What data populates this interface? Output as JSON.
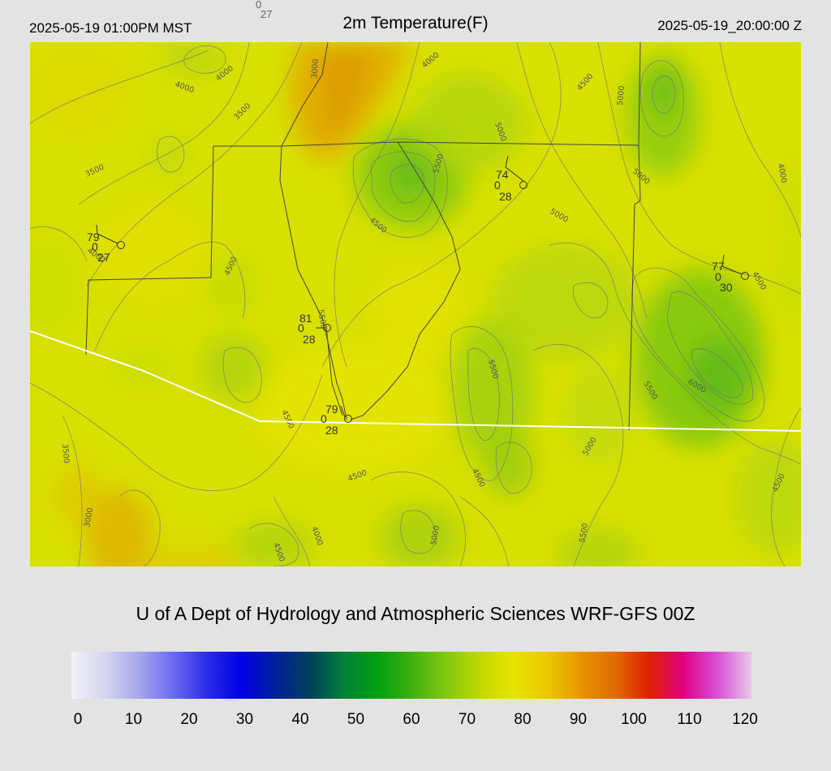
{
  "header": {
    "local_time": "2025-05-19 01:00PM MST",
    "title": "2m Temperature(F)",
    "utc_time": "2025-05-19_20:00:00 Z",
    "top_station": {
      "a": "0",
      "b": "27"
    }
  },
  "credit": "U of A Dept of Hydrology and Atmospheric Sciences WRF-GFS 00Z",
  "colorbar": {
    "ticks": [
      "0",
      "10",
      "20",
      "30",
      "40",
      "50",
      "60",
      "70",
      "80",
      "90",
      "100",
      "110",
      "120"
    ],
    "stops": [
      "#f2f2f8",
      "#d4d4f0",
      "#a6a6ec",
      "#6a6af2",
      "#2b2be8",
      "#0000e6",
      "#00209a",
      "#00405a",
      "#00803a",
      "#00a010",
      "#40b010",
      "#80c810",
      "#c0d800",
      "#e6e400",
      "#ecc800",
      "#e89400",
      "#e06a00",
      "#e02000",
      "#e00080",
      "#d850d8",
      "#e8c8e8"
    ]
  },
  "colors": {
    "background": "#e3e3e3",
    "map_base": "#d8e000",
    "boundary": "#ffffff"
  },
  "contour_labels": [
    "4000",
    "4000",
    "3000",
    "3500",
    "4000",
    "4500",
    "5000",
    "3500",
    "5500",
    "5000",
    "5000",
    "4000",
    "4500",
    "4500",
    "5000",
    "4000",
    "5500",
    "4500",
    "5500",
    "6000",
    "5500",
    "3500",
    "5000",
    "3000",
    "4500",
    "4500",
    "4000",
    "5000",
    "5500",
    "4500",
    "4500"
  ],
  "stations": [
    {
      "temp": "79",
      "wind": "0",
      "dew": "27"
    },
    {
      "temp": "74",
      "wind": "0",
      "dew": "28"
    },
    {
      "temp": "77",
      "wind": "0",
      "dew": "30"
    },
    {
      "temp": "81",
      "wind": "0",
      "dew": "28"
    },
    {
      "temp": "79",
      "wind": "0",
      "dew": "28"
    }
  ]
}
